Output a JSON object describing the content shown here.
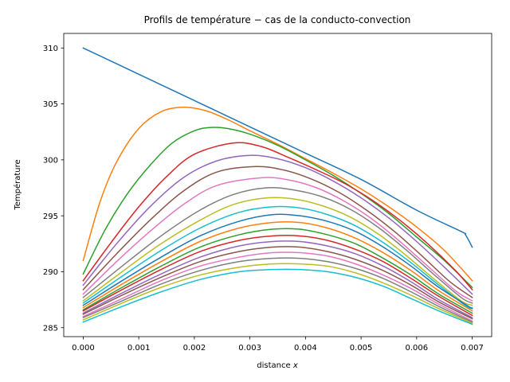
{
  "chart_data": {
    "type": "line",
    "title": "Profils de température − cas de la conducto-convection",
    "xlabel": "distance ",
    "xlabel_var": "x",
    "ylabel": "Température",
    "xlim": [
      -0.00035,
      0.00735
    ],
    "ylim": [
      284.2,
      311.3
    ],
    "x_ticks": [
      0.0,
      0.001,
      0.002,
      0.003,
      0.004,
      0.005,
      0.006,
      0.007
    ],
    "x_tick_labels": [
      "0.000",
      "0.001",
      "0.002",
      "0.003",
      "0.004",
      "0.005",
      "0.006",
      "0.007"
    ],
    "y_ticks": [
      285,
      290,
      295,
      300,
      305,
      310
    ],
    "y_tick_labels": [
      "285",
      "290",
      "295",
      "300",
      "305",
      "310"
    ],
    "grid": false,
    "legend": "none",
    "series": [
      {
        "color": "#1f77b4",
        "x": [
          0,
          0.001,
          0.002,
          0.003,
          0.004,
          0.005,
          0.006,
          0.0068,
          0.00688,
          0.007
        ],
        "y": [
          310.0,
          307.65,
          305.3,
          302.95,
          300.6,
          298.25,
          295.5,
          293.6,
          293.3,
          292.2
        ]
      },
      {
        "color": "#ff7f0e",
        "x": [
          0,
          0.0003,
          0.0006,
          0.001,
          0.0014,
          0.0018,
          0.0022,
          0.0026,
          0.003,
          0.0035,
          0.004,
          0.0045,
          0.005,
          0.0055,
          0.006,
          0.0065,
          0.007
        ],
        "y": [
          291.0,
          296.2,
          299.8,
          302.8,
          304.3,
          304.7,
          304.4,
          303.6,
          302.6,
          301.4,
          300.1,
          298.8,
          297.4,
          295.8,
          294.0,
          291.9,
          289.2
        ]
      },
      {
        "color": "#2ca02c",
        "x": [
          0,
          0.0004,
          0.0008,
          0.0012,
          0.0016,
          0.002,
          0.0023,
          0.0026,
          0.003,
          0.0035,
          0.004,
          0.0045,
          0.005,
          0.0055,
          0.006,
          0.0065,
          0.007
        ],
        "y": [
          289.8,
          293.8,
          297.0,
          299.5,
          301.5,
          302.6,
          302.9,
          302.8,
          302.3,
          301.3,
          300.0,
          298.6,
          297.0,
          295.2,
          293.1,
          291.0,
          288.6
        ]
      },
      {
        "color": "#d62728",
        "x": [
          0,
          0.0005,
          0.001,
          0.0015,
          0.002,
          0.0027,
          0.0032,
          0.0037,
          0.0042,
          0.0047,
          0.0052,
          0.0057,
          0.0062,
          0.0067,
          0.007
        ],
        "y": [
          289.2,
          292.6,
          295.8,
          298.5,
          300.5,
          301.5,
          301.2,
          300.2,
          299.1,
          297.9,
          296.4,
          294.6,
          292.5,
          290.1,
          288.4
        ]
      },
      {
        "color": "#9467bd",
        "x": [
          0,
          0.0006,
          0.0012,
          0.0018,
          0.0024,
          0.003,
          0.0035,
          0.004,
          0.0045,
          0.005,
          0.0055,
          0.006,
          0.0065,
          0.007
        ],
        "y": [
          288.8,
          292.5,
          295.8,
          298.4,
          299.9,
          300.4,
          300.1,
          299.3,
          298.1,
          296.6,
          294.8,
          292.7,
          290.4,
          288.0
        ]
      },
      {
        "color": "#8c564b",
        "x": [
          0,
          0.0006,
          0.0012,
          0.0018,
          0.0024,
          0.0031,
          0.0036,
          0.0041,
          0.0046,
          0.0051,
          0.0056,
          0.0061,
          0.0066,
          0.007
        ],
        "y": [
          288.4,
          291.6,
          294.6,
          297.2,
          298.9,
          299.4,
          299.1,
          298.3,
          297.1,
          295.5,
          293.6,
          291.4,
          289.1,
          287.7
        ]
      },
      {
        "color": "#e377c2",
        "x": [
          0,
          0.0006,
          0.0012,
          0.0018,
          0.0024,
          0.0032,
          0.0037,
          0.0042,
          0.0047,
          0.0052,
          0.0057,
          0.0062,
          0.0067,
          0.007
        ],
        "y": [
          288.0,
          290.9,
          293.6,
          296.0,
          297.7,
          298.4,
          298.2,
          297.5,
          296.3,
          294.7,
          292.7,
          290.5,
          288.3,
          287.4
        ]
      },
      {
        "color": "#7f7f7f",
        "x": [
          0,
          0.0007,
          0.0014,
          0.0021,
          0.0027,
          0.0033,
          0.0038,
          0.0043,
          0.0048,
          0.0053,
          0.0058,
          0.0063,
          0.0068,
          0.007
        ],
        "y": [
          287.7,
          290.5,
          293.2,
          295.5,
          296.9,
          297.5,
          297.3,
          296.7,
          295.6,
          294.0,
          292.0,
          289.8,
          287.7,
          287.2
        ]
      },
      {
        "color": "#bcbd22",
        "x": [
          0,
          0.0007,
          0.0014,
          0.0021,
          0.0027,
          0.0033,
          0.0038,
          0.0043,
          0.0048,
          0.0053,
          0.0058,
          0.0063,
          0.0068,
          0.007
        ],
        "y": [
          287.4,
          290.0,
          292.5,
          294.6,
          296.0,
          296.6,
          296.5,
          295.9,
          294.9,
          293.4,
          291.5,
          289.4,
          287.4,
          287.0
        ]
      },
      {
        "color": "#17becf",
        "x": [
          0,
          0.0007,
          0.0014,
          0.0021,
          0.0028,
          0.0034,
          0.0039,
          0.0044,
          0.0049,
          0.0054,
          0.0059,
          0.0064,
          0.0069,
          0.007
        ],
        "y": [
          287.2,
          289.6,
          291.9,
          293.9,
          295.3,
          295.8,
          295.7,
          295.1,
          294.1,
          292.6,
          290.8,
          288.8,
          286.9,
          286.8
        ]
      },
      {
        "color": "#1f77b4",
        "x": [
          0,
          0.0007,
          0.0014,
          0.0021,
          0.0028,
          0.0034,
          0.0039,
          0.0044,
          0.0049,
          0.0054,
          0.0059,
          0.0064,
          0.007
        ],
        "y": [
          287.0,
          289.2,
          291.3,
          293.2,
          294.5,
          295.1,
          295.0,
          294.5,
          293.6,
          292.2,
          290.5,
          288.6,
          286.7
        ]
      },
      {
        "color": "#ff7f0e",
        "x": [
          0,
          0.0007,
          0.0014,
          0.0021,
          0.0028,
          0.0034,
          0.0039,
          0.0044,
          0.0049,
          0.0054,
          0.0059,
          0.0064,
          0.007
        ],
        "y": [
          286.8,
          288.9,
          290.9,
          292.7,
          293.9,
          294.4,
          294.4,
          293.9,
          293.0,
          291.7,
          290.1,
          288.3,
          286.5
        ]
      },
      {
        "color": "#2ca02c",
        "x": [
          0,
          0.0007,
          0.0014,
          0.0021,
          0.0028,
          0.0034,
          0.0039,
          0.0044,
          0.0049,
          0.0054,
          0.0059,
          0.0064,
          0.007
        ],
        "y": [
          286.6,
          288.6,
          290.5,
          292.2,
          293.3,
          293.8,
          293.8,
          293.3,
          292.5,
          291.2,
          289.7,
          288.0,
          286.3
        ]
      },
      {
        "color": "#d62728",
        "x": [
          0,
          0.0007,
          0.0014,
          0.0021,
          0.0028,
          0.0034,
          0.0039,
          0.0044,
          0.0049,
          0.0054,
          0.0059,
          0.0064,
          0.007
        ],
        "y": [
          286.5,
          288.4,
          290.2,
          291.8,
          292.8,
          293.2,
          293.2,
          292.8,
          292.0,
          290.9,
          289.4,
          287.8,
          286.1
        ]
      },
      {
        "color": "#9467bd",
        "x": [
          0,
          0.0007,
          0.0014,
          0.0021,
          0.0028,
          0.0034,
          0.0039,
          0.0044,
          0.0049,
          0.0054,
          0.0059,
          0.0064,
          0.007
        ],
        "y": [
          286.3,
          288.1,
          289.8,
          291.3,
          292.3,
          292.7,
          292.7,
          292.3,
          291.6,
          290.5,
          289.1,
          287.5,
          285.9
        ]
      },
      {
        "color": "#8c564b",
        "x": [
          0,
          0.0007,
          0.0014,
          0.0021,
          0.0028,
          0.0034,
          0.0039,
          0.0044,
          0.0049,
          0.0054,
          0.0059,
          0.0064,
          0.007
        ],
        "y": [
          286.2,
          287.9,
          289.5,
          290.9,
          291.8,
          292.2,
          292.2,
          291.8,
          291.1,
          290.1,
          288.8,
          287.3,
          285.8
        ]
      },
      {
        "color": "#e377c2",
        "x": [
          0,
          0.0007,
          0.0014,
          0.0021,
          0.0028,
          0.0034,
          0.0039,
          0.0044,
          0.0049,
          0.0054,
          0.0059,
          0.0064,
          0.007
        ],
        "y": [
          286.0,
          287.6,
          289.2,
          290.5,
          291.3,
          291.7,
          291.7,
          291.4,
          290.7,
          289.7,
          288.5,
          287.1,
          285.6
        ]
      },
      {
        "color": "#7f7f7f",
        "x": [
          0,
          0.0007,
          0.0014,
          0.0021,
          0.0028,
          0.0034,
          0.0039,
          0.0044,
          0.0049,
          0.0054,
          0.0059,
          0.0064,
          0.007
        ],
        "y": [
          285.9,
          287.4,
          288.9,
          290.1,
          290.9,
          291.2,
          291.2,
          290.9,
          290.3,
          289.4,
          288.2,
          286.9,
          285.5
        ]
      },
      {
        "color": "#bcbd22",
        "x": [
          0,
          0.0007,
          0.0014,
          0.0021,
          0.0028,
          0.0034,
          0.0039,
          0.0044,
          0.0049,
          0.0054,
          0.0059,
          0.0064,
          0.007
        ],
        "y": [
          285.7,
          287.2,
          288.6,
          289.7,
          290.4,
          290.7,
          290.7,
          290.5,
          289.9,
          289.0,
          287.9,
          286.7,
          285.4
        ]
      },
      {
        "color": "#17becf",
        "x": [
          0,
          0.0007,
          0.0014,
          0.0021,
          0.0028,
          0.0034,
          0.0039,
          0.0044,
          0.0049,
          0.0054,
          0.0059,
          0.0064,
          0.007
        ],
        "y": [
          285.5,
          286.9,
          288.2,
          289.3,
          290.0,
          290.2,
          290.2,
          290.0,
          289.5,
          288.7,
          287.6,
          286.5,
          285.3
        ]
      }
    ]
  }
}
